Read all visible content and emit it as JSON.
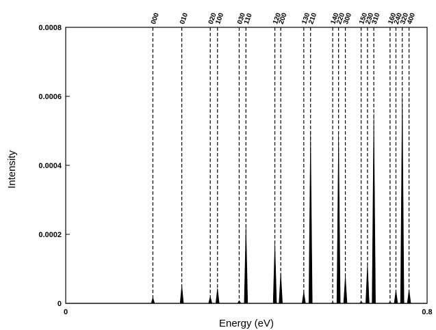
{
  "chart_data": {
    "type": "line",
    "title": "",
    "xlabel": "Energy (eV)",
    "ylabel": "Intensity",
    "xlim": [
      0,
      0.8
    ],
    "ylim": [
      0,
      0.0008
    ],
    "x_ticks": [
      "0",
      "0.8"
    ],
    "y_ticks": [
      "0",
      "0.0002",
      "0.0004",
      "0.0006",
      "0.0008"
    ],
    "grid": false,
    "legend": "none",
    "line_color": "#000000",
    "reference_line_style": "dashed",
    "peaks": [
      {
        "label": "000",
        "x": 0.193,
        "intensity": 1.7e-05
      },
      {
        "label": "010",
        "x": 0.257,
        "intensity": 5.2e-05
      },
      {
        "label": "020",
        "x": 0.32,
        "intensity": 2e-05
      },
      {
        "label": "100",
        "x": 0.336,
        "intensity": 4.4e-05
      },
      {
        "label": "030",
        "x": 0.384,
        "intensity": 8e-06
      },
      {
        "label": "110",
        "x": 0.399,
        "intensity": 0.000225
      },
      {
        "label": "120",
        "x": 0.463,
        "intensity": 0.000175
      },
      {
        "label": "200",
        "x": 0.476,
        "intensity": 9e-05
      },
      {
        "label": "130",
        "x": 0.527,
        "intensity": 3.4e-05
      },
      {
        "label": "210",
        "x": 0.542,
        "intensity": 0.0005
      },
      {
        "label": "140",
        "x": 0.591,
        "intensity": 3e-06
      },
      {
        "label": "220",
        "x": 0.604,
        "intensity": 0.000493
      },
      {
        "label": "300",
        "x": 0.619,
        "intensity": 8e-05
      },
      {
        "label": "150",
        "x": 0.654,
        "intensity": 5e-06
      },
      {
        "label": "230",
        "x": 0.668,
        "intensity": 0.000115
      },
      {
        "label": "310",
        "x": 0.682,
        "intensity": 0.00055
      },
      {
        "label": "160",
        "x": 0.718,
        "intensity": 4e-06
      },
      {
        "label": "240",
        "x": 0.731,
        "intensity": 3.8e-05
      },
      {
        "label": "320",
        "x": 0.745,
        "intensity": 0.00061
      },
      {
        "label": "400",
        "x": 0.76,
        "intensity": 4e-05
      }
    ]
  }
}
